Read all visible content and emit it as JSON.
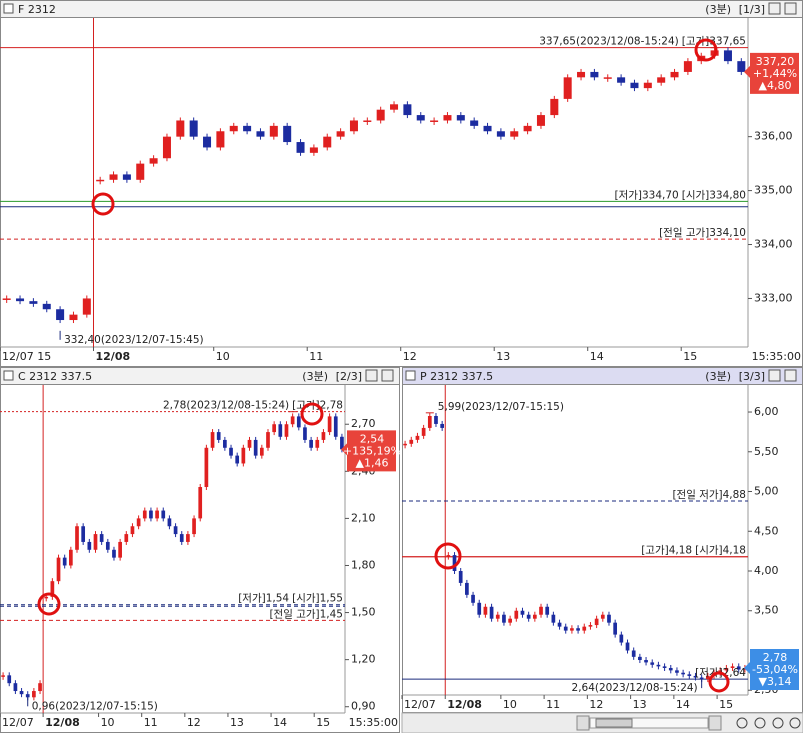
{
  "chart_data": [
    {
      "type": "candle",
      "title": "F 2312",
      "period": "(3분)",
      "page": "[1/3]",
      "categories": [
        "12/07 15",
        null,
        null,
        null,
        null,
        null,
        null,
        "12/08",
        null,
        null,
        null,
        null,
        null,
        null,
        null,
        null,
        "10",
        null,
        null,
        null,
        null,
        null,
        null,
        "11",
        null,
        null,
        null,
        null,
        null,
        null,
        "12",
        null,
        null,
        null,
        null,
        null,
        null,
        "13",
        null,
        null,
        null,
        null,
        null,
        null,
        "14",
        null,
        null,
        null,
        null,
        null,
        null,
        "15",
        null,
        null,
        null,
        null
      ],
      "time_label": "15:35:00",
      "values": [
        333.0,
        332.95,
        332.9,
        332.8,
        332.6,
        332.7,
        333.0,
        335.2,
        335.3,
        335.2,
        335.5,
        335.6,
        336.0,
        336.3,
        336.0,
        335.8,
        336.1,
        336.2,
        336.1,
        336.0,
        336.2,
        335.9,
        335.7,
        335.8,
        336.0,
        336.1,
        336.3,
        336.3,
        336.5,
        336.6,
        336.4,
        336.3,
        336.3,
        336.4,
        336.3,
        336.2,
        336.1,
        336.0,
        336.1,
        336.2,
        336.4,
        336.7,
        337.1,
        337.2,
        337.1,
        337.1,
        337.0,
        336.9,
        337.0,
        337.1,
        337.2,
        337.4,
        337.5,
        337.6,
        337.4,
        337.2
      ],
      "up_color": "#e02020",
      "down_color": "#1c2ca0",
      "ylim": [
        332.1,
        338.2
      ],
      "yticks": [
        {
          "value": 333,
          "label": "333,00"
        },
        {
          "value": 334,
          "label": "334,00"
        },
        {
          "value": 335,
          "label": "335,00"
        },
        {
          "value": 336,
          "label": "336,00"
        }
      ],
      "levels": [
        {
          "label": "[고가]337,65",
          "value": 337.65,
          "color": "#d42020",
          "style": "solid"
        },
        {
          "label": "[시가]334,80",
          "value": 334.8,
          "color": "#2a9a2a",
          "style": "solid"
        },
        {
          "label": "[저가]334,70",
          "value": 334.7,
          "color": "#1a2a7c",
          "style": "solid"
        },
        {
          "label": "[전일 고가]334,10",
          "value": 334.1,
          "color": "#d42020",
          "style": "dashed"
        }
      ],
      "high": {
        "value": 337.65,
        "label": "337,65(2023/12/08-15:24)"
      },
      "low": {
        "value": 332.4,
        "label": "332,40(2023/12/07-15:45)"
      },
      "last": {
        "value": 337.2,
        "label": "337,20"
      },
      "change_pct": {
        "value": 1.44,
        "label": "+1,44%"
      },
      "change": {
        "value": 4.8,
        "label": "▲4,80"
      },
      "box_color": "#e8433a"
    },
    {
      "type": "candle",
      "title": "C 2312 337.5",
      "period": "(3분)",
      "page": "[2/3]",
      "categories": [
        "12/07",
        null,
        null,
        null,
        null,
        null,
        null,
        "12/08",
        null,
        null,
        null,
        null,
        null,
        null,
        null,
        null,
        "10",
        null,
        null,
        null,
        null,
        null,
        null,
        "11",
        null,
        null,
        null,
        null,
        null,
        null,
        "12",
        null,
        null,
        null,
        null,
        null,
        null,
        "13",
        null,
        null,
        null,
        null,
        null,
        null,
        "14",
        null,
        null,
        null,
        null,
        null,
        null,
        "15",
        null,
        null,
        null,
        null
      ],
      "time_label": "15:35:00",
      "values": [
        1.1,
        1.05,
        1.0,
        0.98,
        0.96,
        1.0,
        1.05,
        1.6,
        1.7,
        1.85,
        1.8,
        1.9,
        2.05,
        1.95,
        1.9,
        2.0,
        1.95,
        1.9,
        1.85,
        1.95,
        2.0,
        2.05,
        2.1,
        2.15,
        2.1,
        2.15,
        2.1,
        2.05,
        2.0,
        1.95,
        2.0,
        2.1,
        2.3,
        2.55,
        2.65,
        2.6,
        2.55,
        2.5,
        2.45,
        2.55,
        2.6,
        2.5,
        2.55,
        2.65,
        2.7,
        2.62,
        2.7,
        2.75,
        2.68,
        2.6,
        2.55,
        2.6,
        2.65,
        2.75,
        2.62,
        2.54
      ],
      "up_color": "#e02020",
      "down_color": "#1c2ca0",
      "ylim": [
        0.86,
        2.95
      ],
      "yticks": [
        {
          "value": 0.9,
          "label": "0,90"
        },
        {
          "value": 1.2,
          "label": "1,20"
        },
        {
          "value": 1.5,
          "label": "1,50"
        },
        {
          "value": 1.8,
          "label": "1,80"
        },
        {
          "value": 2.1,
          "label": "2,10"
        },
        {
          "value": 2.4,
          "label": "2,40"
        },
        {
          "value": 2.7,
          "label": "2,70"
        }
      ],
      "levels": [
        {
          "label": "[고가]2,78",
          "value": 2.78,
          "color": "#d42020",
          "style": "dotted"
        },
        {
          "label": "[시가]1,55",
          "value": 1.55,
          "color": "#1a2a7c",
          "style": "dashed"
        },
        {
          "label": "[저가]1,54",
          "value": 1.54,
          "color": "#1a2a7c",
          "style": "dashed"
        },
        {
          "label": "[전일 고가]1,45",
          "value": 1.45,
          "color": "#d42020",
          "style": "dashed"
        }
      ],
      "high": {
        "value": 2.78,
        "label": "2,78(2023/12/08-15:24)"
      },
      "low": {
        "value": 0.96,
        "label": "0,96(2023/12/07-15:15)"
      },
      "last": {
        "value": 2.54,
        "label": "2,54"
      },
      "change_pct": {
        "value": 135.19,
        "label": "+135,19%"
      },
      "change": {
        "value": 1.46,
        "label": "▲1,46"
      },
      "box_color": "#e8433a"
    },
    {
      "type": "candle",
      "title": "P 2312 337.5",
      "period": "(3분)",
      "page": "[3/3]",
      "categories": [
        "12/07",
        null,
        null,
        null,
        null,
        null,
        null,
        "12/08",
        null,
        null,
        null,
        null,
        null,
        null,
        null,
        null,
        "10",
        null,
        null,
        null,
        null,
        null,
        null,
        "11",
        null,
        null,
        null,
        null,
        null,
        null,
        "12",
        null,
        null,
        null,
        null,
        null,
        null,
        "13",
        null,
        null,
        null,
        null,
        null,
        null,
        "14",
        null,
        null,
        null,
        null,
        null,
        null,
        "15",
        null,
        null,
        null,
        null
      ],
      "values": [
        5.6,
        5.65,
        5.7,
        5.8,
        5.95,
        5.85,
        5.8,
        4.2,
        4.0,
        3.85,
        3.7,
        3.6,
        3.45,
        3.55,
        3.4,
        3.45,
        3.35,
        3.4,
        3.5,
        3.45,
        3.4,
        3.45,
        3.55,
        3.45,
        3.35,
        3.3,
        3.25,
        3.28,
        3.25,
        3.3,
        3.32,
        3.4,
        3.45,
        3.35,
        3.2,
        3.1,
        3.0,
        2.92,
        2.88,
        2.85,
        2.82,
        2.8,
        2.78,
        2.75,
        2.72,
        2.7,
        2.68,
        2.66,
        2.64,
        2.68,
        2.72,
        2.75,
        2.78,
        2.8,
        2.76,
        2.78
      ],
      "up_color": "#e02020",
      "down_color": "#1c2ca0",
      "ylim": [
        2.44,
        6.34
      ],
      "yticks": [
        {
          "value": 2.5,
          "label": "2,50"
        },
        {
          "value": 3.5,
          "label": "3,50"
        },
        {
          "value": 4,
          "label": "4,00"
        },
        {
          "value": 4.5,
          "label": "4,50"
        },
        {
          "value": 5,
          "label": "5,00"
        },
        {
          "value": 5.5,
          "label": "5,50"
        },
        {
          "value": 6,
          "label": "6,00"
        }
      ],
      "levels": [
        {
          "label": "[전일 저가]4,88",
          "value": 4.88,
          "color": "#1a2a7c",
          "style": "dashed"
        },
        {
          "label": "[시가]4,18",
          "value": 4.18,
          "color": "#d42020",
          "style": "solid"
        },
        {
          "label": "[고가]4,18",
          "value": 4.18,
          "color": "#d42020",
          "style": "solid"
        },
        {
          "label": "[저가]2,64",
          "value": 2.64,
          "color": "#1a2a7c",
          "style": "solid"
        }
      ],
      "high": {
        "value": 5.99,
        "label": "5,99(2023/12/07-15:15)"
      },
      "low": {
        "value": 2.64,
        "label": "2,64(2023/12/08-15:24)"
      },
      "last": {
        "value": 2.78,
        "label": "2,78"
      },
      "change_pct": {
        "value": -53.04,
        "label": "-53,04%"
      },
      "change": {
        "value": -3.14,
        "label": "▼3,14"
      },
      "box_color": "#3d8ee6"
    }
  ]
}
